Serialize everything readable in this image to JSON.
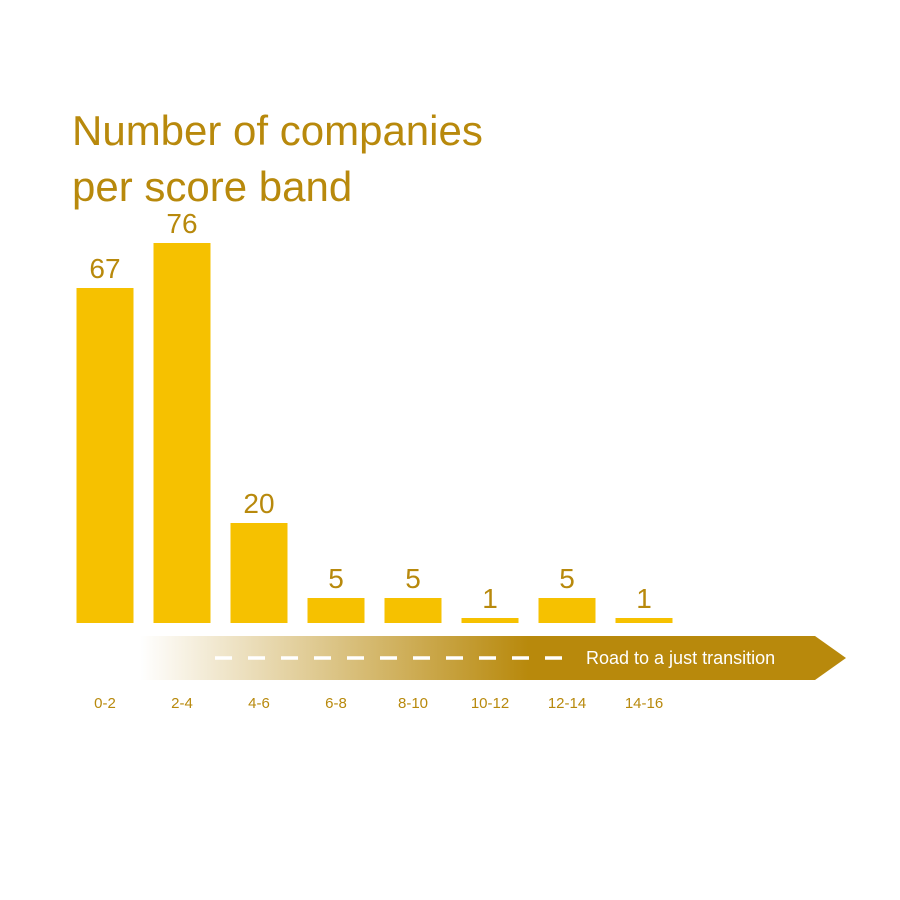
{
  "chart_data": {
    "type": "bar",
    "title": "Number of companies\nper score band",
    "categories": [
      "0-2",
      "2-4",
      "4-6",
      "6-8",
      "8-10",
      "10-12",
      "12-14",
      "14-16"
    ],
    "values": [
      67,
      76,
      20,
      5,
      5,
      1,
      5,
      1
    ],
    "ylim": [
      0,
      80
    ],
    "grid": false,
    "legend": "none",
    "annotations": [
      "Road to a just transition"
    ],
    "colors": {
      "bar": "#f6c100",
      "text": "#b8890c",
      "arrow_start": "#ffffff",
      "arrow_end": "#b8890c",
      "arrow_label": "#ffffff"
    }
  }
}
